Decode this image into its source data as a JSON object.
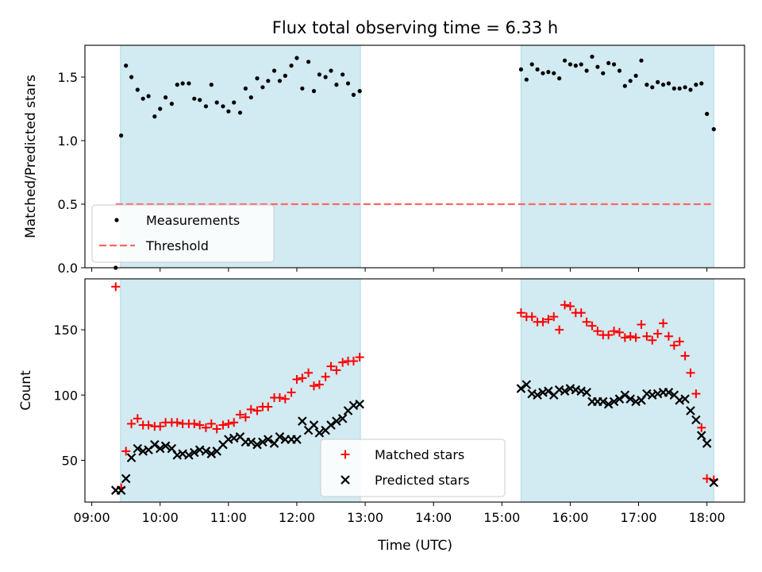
{
  "title": "Flux total observing time = 6.33 h",
  "xlabel": "Time (UTC)",
  "x_ticks": [
    "09:00",
    "10:00",
    "11:00",
    "12:00",
    "13:00",
    "14:00",
    "15:00",
    "16:00",
    "17:00",
    "18:00"
  ],
  "colors": {
    "band": "#add8e6",
    "matched": "#ff0000",
    "predicted": "#000000",
    "threshold": "#ff6666",
    "measurement": "#000000"
  },
  "chart_data": [
    {
      "type": "scatter",
      "id": "ratio",
      "ylabel": "Matched/Predicted stars",
      "xlim": [
        8.9,
        18.55
      ],
      "ylim": [
        0.0,
        1.75
      ],
      "y_ticks": [
        0.0,
        0.5,
        1.0,
        1.5
      ],
      "y_tick_labels": [
        "0.0",
        "0.5",
        "1.0",
        "1.5"
      ],
      "observing_windows": [
        [
          9.42,
          12.93
        ],
        [
          15.28,
          18.1
        ]
      ],
      "threshold": {
        "value": 0.5,
        "x_range": [
          9.35,
          18.1
        ]
      },
      "legend": {
        "location": "lower-left",
        "entries": [
          "Measurements",
          "Threshold"
        ]
      },
      "series": [
        {
          "name": "Measurements",
          "x": [
            9.35,
            9.43,
            9.5,
            9.58,
            9.67,
            9.75,
            9.83,
            9.92,
            10.0,
            10.08,
            10.17,
            10.25,
            10.33,
            10.42,
            10.5,
            10.58,
            10.67,
            10.75,
            10.83,
            10.92,
            11.0,
            11.08,
            11.17,
            11.25,
            11.33,
            11.42,
            11.5,
            11.58,
            11.67,
            11.75,
            11.83,
            11.92,
            12.0,
            12.08,
            12.17,
            12.25,
            12.33,
            12.42,
            12.5,
            12.58,
            12.67,
            12.75,
            12.83,
            12.92,
            15.28,
            15.36,
            15.44,
            15.52,
            15.6,
            15.68,
            15.76,
            15.84,
            15.92,
            16.0,
            16.08,
            16.16,
            16.24,
            16.32,
            16.4,
            16.48,
            16.56,
            16.64,
            16.72,
            16.8,
            16.88,
            16.96,
            17.04,
            17.12,
            17.2,
            17.28,
            17.36,
            17.44,
            17.52,
            17.6,
            17.68,
            17.76,
            17.84,
            17.92,
            18.0,
            18.1
          ],
          "y": [
            0.0,
            1.04,
            1.59,
            1.5,
            1.4,
            1.33,
            1.35,
            1.19,
            1.25,
            1.34,
            1.29,
            1.44,
            1.45,
            1.45,
            1.33,
            1.32,
            1.27,
            1.44,
            1.3,
            1.27,
            1.23,
            1.3,
            1.22,
            1.41,
            1.34,
            1.49,
            1.42,
            1.47,
            1.55,
            1.47,
            1.51,
            1.59,
            1.65,
            1.41,
            1.62,
            1.39,
            1.52,
            1.5,
            1.55,
            1.44,
            1.52,
            1.45,
            1.36,
            1.39,
            1.56,
            1.48,
            1.6,
            1.56,
            1.53,
            1.54,
            1.53,
            1.49,
            1.63,
            1.6,
            1.59,
            1.6,
            1.55,
            1.66,
            1.58,
            1.53,
            1.61,
            1.6,
            1.55,
            1.43,
            1.47,
            1.51,
            1.63,
            1.44,
            1.42,
            1.46,
            1.44,
            1.45,
            1.41,
            1.41,
            1.42,
            1.4,
            1.44,
            1.45,
            1.21,
            1.09
          ]
        }
      ]
    },
    {
      "type": "scatter",
      "id": "counts",
      "ylabel": "Count",
      "xlim": [
        8.9,
        18.55
      ],
      "ylim": [
        18,
        189
      ],
      "y_ticks": [
        50,
        100,
        150
      ],
      "y_tick_labels": [
        "50",
        "100",
        "150"
      ],
      "observing_windows": [
        [
          9.42,
          12.93
        ],
        [
          15.28,
          18.1
        ]
      ],
      "legend": {
        "location": "lower-center",
        "entries": [
          "Matched stars",
          "Predicted stars"
        ]
      },
      "series": [
        {
          "name": "Matched stars",
          "x": [
            9.35,
            9.43,
            9.5,
            9.58,
            9.67,
            9.75,
            9.83,
            9.92,
            10.0,
            10.08,
            10.17,
            10.25,
            10.33,
            10.42,
            10.5,
            10.58,
            10.67,
            10.75,
            10.83,
            10.92,
            11.0,
            11.08,
            11.17,
            11.25,
            11.33,
            11.42,
            11.5,
            11.58,
            11.67,
            11.75,
            11.83,
            11.92,
            12.0,
            12.08,
            12.17,
            12.25,
            12.33,
            12.42,
            12.5,
            12.58,
            12.67,
            12.75,
            12.83,
            12.92,
            15.28,
            15.36,
            15.44,
            15.52,
            15.6,
            15.68,
            15.76,
            15.84,
            15.92,
            16.0,
            16.08,
            16.16,
            16.24,
            16.32,
            16.4,
            16.48,
            16.56,
            16.64,
            16.72,
            16.8,
            16.88,
            16.96,
            17.04,
            17.12,
            17.2,
            17.28,
            17.36,
            17.44,
            17.52,
            17.6,
            17.68,
            17.76,
            17.84,
            17.92,
            18.0,
            18.1
          ],
          "y": [
            183,
            29,
            57,
            78,
            82,
            77,
            77,
            76,
            76,
            79,
            79,
            79,
            78,
            78,
            78,
            77,
            75,
            78,
            74,
            77,
            78,
            79,
            85,
            83,
            89,
            88,
            91,
            91,
            98,
            98,
            97,
            102,
            112,
            113,
            117,
            107,
            108,
            114,
            122,
            119,
            125,
            126,
            126,
            129,
            163,
            160,
            160,
            156,
            156,
            158,
            160,
            150,
            169,
            168,
            163,
            163,
            156,
            153,
            149,
            146,
            146,
            149,
            148,
            144,
            145,
            144,
            154,
            145,
            142,
            147,
            155,
            145,
            138,
            141,
            130,
            117,
            101,
            75,
            36,
            35
          ],
          "marker": "plus"
        },
        {
          "name": "Predicted stars",
          "x": [
            9.35,
            9.43,
            9.5,
            9.58,
            9.67,
            9.75,
            9.83,
            9.92,
            10.0,
            10.08,
            10.17,
            10.25,
            10.33,
            10.42,
            10.5,
            10.58,
            10.67,
            10.75,
            10.83,
            10.92,
            11.0,
            11.08,
            11.17,
            11.25,
            11.33,
            11.42,
            11.5,
            11.58,
            11.67,
            11.75,
            11.83,
            11.92,
            12.0,
            12.08,
            12.17,
            12.25,
            12.33,
            12.42,
            12.5,
            12.58,
            12.67,
            12.75,
            12.83,
            12.92,
            15.28,
            15.36,
            15.44,
            15.52,
            15.6,
            15.68,
            15.76,
            15.84,
            15.92,
            16.0,
            16.08,
            16.16,
            16.24,
            16.32,
            16.4,
            16.48,
            16.56,
            16.64,
            16.72,
            16.8,
            16.88,
            16.96,
            17.04,
            17.12,
            17.2,
            17.28,
            17.36,
            17.44,
            17.52,
            17.6,
            17.68,
            17.76,
            17.84,
            17.92,
            18.0,
            18.1
          ],
          "y": [
            27,
            27,
            36,
            52,
            59,
            57,
            58,
            62,
            59,
            61,
            59,
            54,
            55,
            54,
            56,
            58,
            57,
            55,
            57,
            62,
            66,
            67,
            68,
            64,
            64,
            62,
            64,
            66,
            63,
            68,
            66,
            66,
            66,
            80,
            73,
            77,
            71,
            73,
            77,
            80,
            82,
            88,
            92,
            93,
            105,
            108,
            101,
            100,
            102,
            103,
            100,
            104,
            103,
            105,
            104,
            103,
            102,
            95,
            95,
            95,
            93,
            95,
            97,
            100,
            97,
            95,
            96,
            101,
            100,
            101,
            102,
            102,
            100,
            96,
            97,
            88,
            81,
            69,
            63,
            33
          ],
          "marker": "x"
        }
      ]
    }
  ]
}
